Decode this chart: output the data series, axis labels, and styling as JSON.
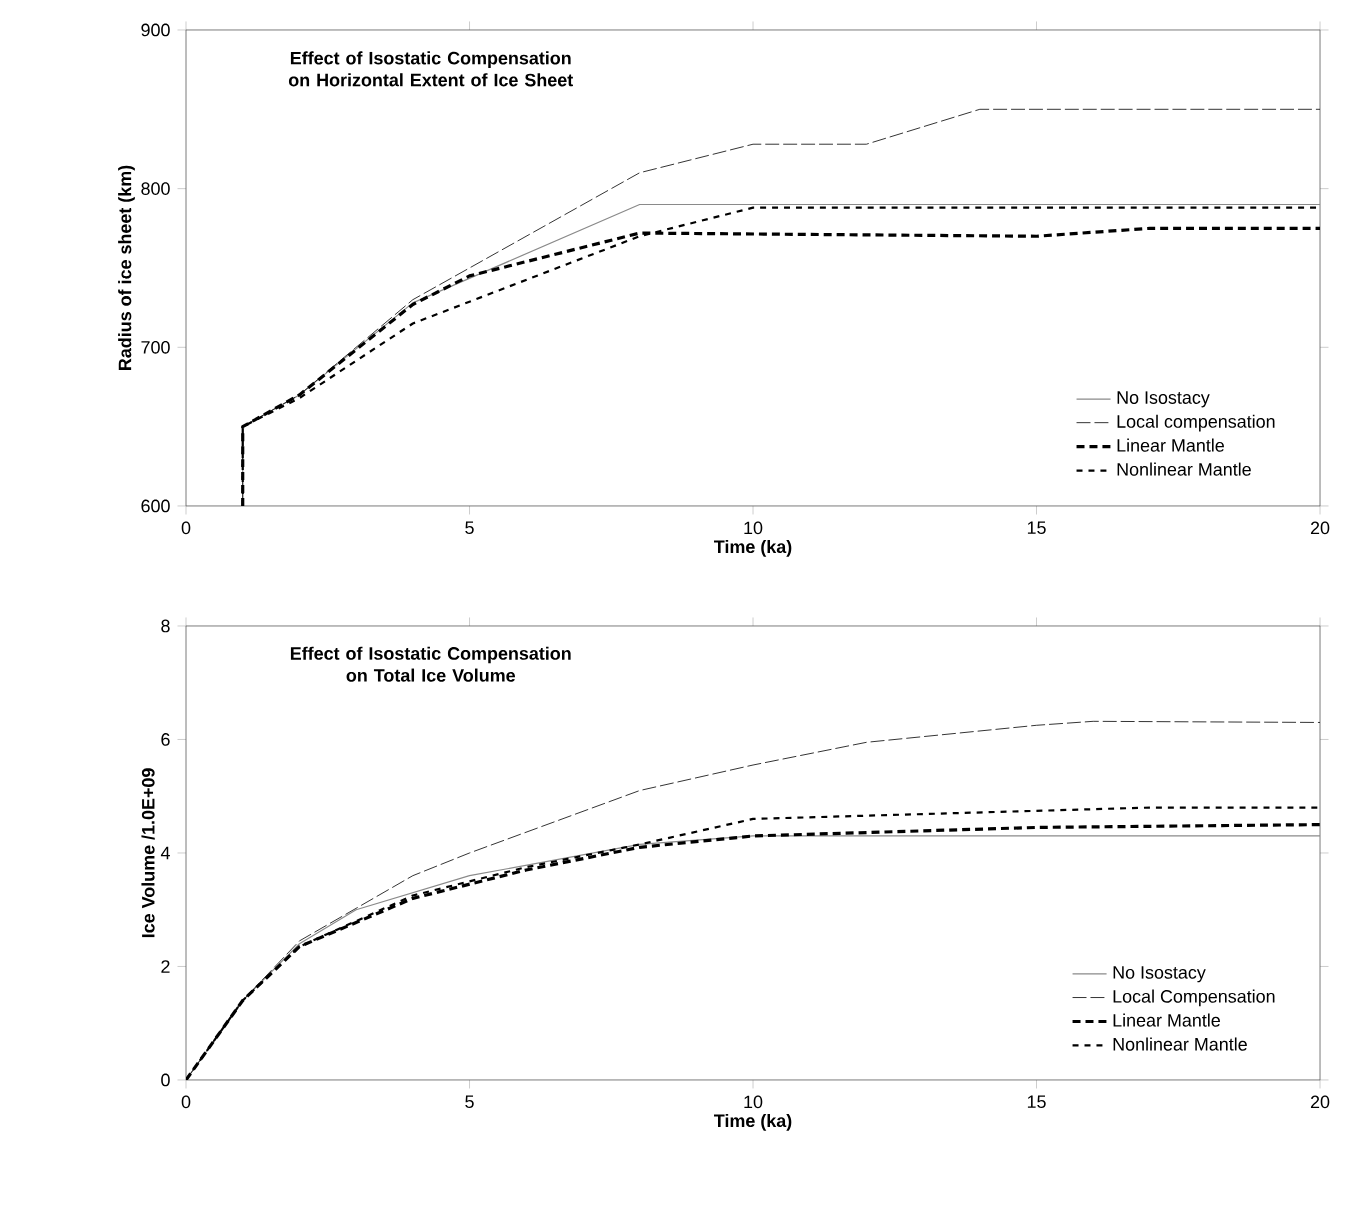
{
  "chart_data": [
    {
      "type": "line",
      "title": "Effect of Isostatic Compensation on Horizontal Extent of Ice Sheet",
      "xlabel": "Time (ka)",
      "ylabel": "Radius  of ice sheet (km)",
      "xlim": [
        0,
        20
      ],
      "ylim": [
        600,
        900
      ],
      "xticks": [
        0,
        5,
        10,
        15,
        20
      ],
      "yticks": [
        600,
        700,
        800,
        900
      ],
      "legend": "bottom right",
      "grid": false,
      "series": [
        {
          "name": "No Isostacy",
          "color": "#8a8a8a",
          "line_style": "solid",
          "x": [
            1,
            1,
            2,
            4,
            8,
            20
          ],
          "values": [
            600,
            650,
            670,
            728,
            790,
            790
          ]
        },
        {
          "name": "Local compensation",
          "color": "#000000",
          "line_style": "dashed",
          "x": [
            1,
            1,
            2,
            4,
            8,
            10,
            12,
            14,
            20
          ],
          "values": [
            600,
            650,
            670,
            730,
            810,
            828,
            828,
            850,
            850
          ]
        },
        {
          "name": "Linear Mantle",
          "color": "#000000",
          "line_style": "dashed",
          "x": [
            1,
            1,
            2,
            4,
            5,
            8,
            15,
            17,
            20
          ],
          "values": [
            600,
            650,
            670,
            727,
            745,
            772,
            770,
            775,
            775
          ]
        },
        {
          "name": "Nonlinear Mantle",
          "color": "#000000",
          "line_style": "dashed",
          "x": [
            1,
            1,
            2,
            4,
            8,
            10,
            20
          ],
          "values": [
            600,
            650,
            668,
            715,
            770,
            788,
            788
          ]
        }
      ]
    },
    {
      "type": "line",
      "title": "Effect of Isostatic Compensation on Total Ice Volume",
      "xlabel": "Time (ka)",
      "ylabel": "Ice Volume /1.0E+09",
      "xlim": [
        0,
        20
      ],
      "ylim": [
        0,
        8
      ],
      "xticks": [
        0,
        5,
        10,
        15,
        20
      ],
      "yticks": [
        0,
        2,
        4,
        6,
        8
      ],
      "legend": "bottom right",
      "grid": false,
      "series": [
        {
          "name": "No Isostacy",
          "color": "#8a8a8a",
          "line_style": "solid",
          "x": [
            0,
            1,
            2,
            3,
            5,
            8,
            10,
            15,
            20
          ],
          "values": [
            0,
            1.4,
            2.4,
            3.0,
            3.6,
            4.15,
            4.3,
            4.3,
            4.3
          ]
        },
        {
          "name": "Local Compensation",
          "color": "#000000",
          "line_style": "dashed",
          "x": [
            0,
            1,
            2,
            4,
            5,
            8,
            10,
            12,
            15,
            16,
            20
          ],
          "values": [
            0,
            1.4,
            2.45,
            3.6,
            4.0,
            5.1,
            5.55,
            5.95,
            6.25,
            6.32,
            6.3
          ]
        },
        {
          "name": "Linear Mantle",
          "color": "#000000",
          "line_style": "dashed",
          "x": [
            0,
            1,
            2,
            4,
            6,
            8,
            10,
            15,
            20
          ],
          "values": [
            0,
            1.4,
            2.35,
            3.2,
            3.7,
            4.1,
            4.3,
            4.45,
            4.5
          ]
        },
        {
          "name": "Nonlinear Mantle",
          "color": "#000000",
          "line_style": "dashed",
          "x": [
            0,
            1,
            2,
            4,
            6,
            8,
            10,
            17,
            20
          ],
          "values": [
            0,
            1.4,
            2.35,
            3.25,
            3.75,
            4.15,
            4.6,
            4.8,
            4.8
          ]
        }
      ]
    }
  ]
}
